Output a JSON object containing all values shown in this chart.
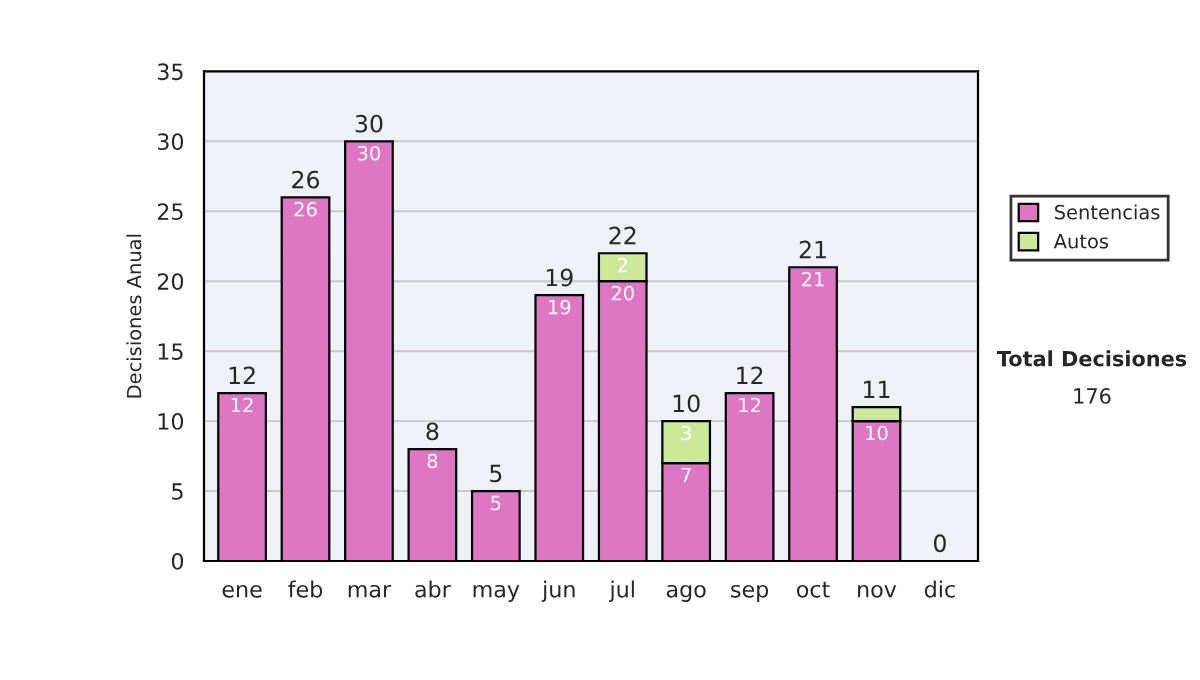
{
  "chart_data": {
    "type": "bar",
    "stacked": true,
    "ylabel": "Decisiones Anual",
    "categories": [
      "ene",
      "feb",
      "mar",
      "abr",
      "may",
      "jun",
      "jul",
      "ago",
      "sep",
      "oct",
      "nov",
      "dic"
    ],
    "series": [
      {
        "name": "Sentencias",
        "color": "#dd77c4",
        "values": [
          12,
          26,
          30,
          8,
          5,
          19,
          20,
          7,
          12,
          21,
          10,
          0
        ],
        "value_labels": [
          "12",
          "26",
          "30",
          "8",
          "5",
          "19",
          "20",
          "7",
          "12",
          "21",
          "10",
          null
        ]
      },
      {
        "name": "Autos",
        "color": "#cce899",
        "values": [
          0,
          0,
          0,
          0,
          0,
          0,
          2,
          3,
          0,
          0,
          1,
          0
        ],
        "value_labels": [
          null,
          null,
          null,
          null,
          null,
          null,
          "2",
          "3",
          null,
          null,
          null,
          null
        ]
      }
    ],
    "totals": [
      "12",
      "26",
      "30",
      "8",
      "5",
      "19",
      "22",
      "10",
      "12",
      "21",
      "11",
      "0"
    ],
    "ylim": [
      0,
      35
    ],
    "yticks": [
      0,
      5,
      10,
      15,
      20,
      25,
      30,
      35
    ],
    "grid": "y",
    "legend": "right",
    "annotations": [
      "Total Decisiones",
      "176"
    ]
  }
}
